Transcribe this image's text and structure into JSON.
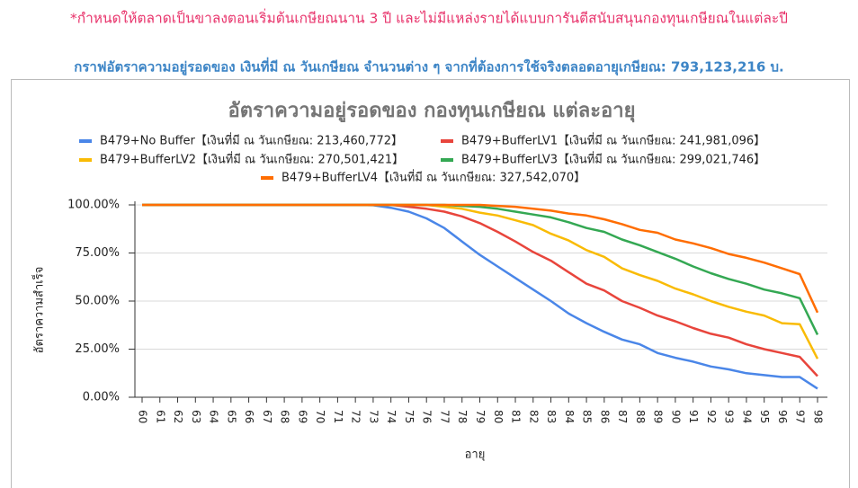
{
  "note": "*กำหนดให้ตลาดเป็นขาลงตอนเริ่มต้นเกษียณนาน 3 ปี และไม่มีแหล่งรายได้แบบการันตีสนับสนุนกองทุนเกษียณในแต่ละปี",
  "heading": "กราฟอัตราความอยู่รอดของ เงินที่มี ณ วันเกษียณ จำนวนต่าง ๆ จากที่ต้องการใช้จริงตลอดอายุเกษียณ: 793,123,216 บ.",
  "chart_data": {
    "type": "line",
    "title": "อัตราความอยู่รอดของ กองทุนเกษียณ แต่ละอายุ",
    "x_label": "อายุ",
    "y_label": "อัตราความสำเร็จ",
    "categories": [
      60,
      61,
      62,
      63,
      64,
      65,
      66,
      67,
      68,
      69,
      70,
      71,
      72,
      73,
      74,
      75,
      76,
      77,
      78,
      79,
      80,
      81,
      82,
      83,
      84,
      85,
      86,
      87,
      88,
      89,
      90,
      91,
      92,
      93,
      94,
      95,
      96,
      97,
      98
    ],
    "ylim": [
      0,
      100
    ],
    "yticks": [
      {
        "value": 0,
        "label": "0.00%"
      },
      {
        "value": 25,
        "label": "25.00%"
      },
      {
        "value": 50,
        "label": "50.00%"
      },
      {
        "value": 75,
        "label": "75.00%"
      },
      {
        "value": 100,
        "label": "100.00%"
      }
    ],
    "grid": true,
    "series": [
      {
        "name": "B479+No Buffer【เงินที่มี ณ วันเกษียณ: 213,460,772】",
        "color": "#4a86e8",
        "values": [
          100,
          100,
          100,
          100,
          100,
          100,
          100,
          100,
          100,
          100,
          100,
          100,
          100,
          99.8,
          98.5,
          96.5,
          93,
          88,
          81,
          74,
          68,
          62,
          56,
          50,
          43.5,
          38.5,
          34,
          30,
          27.5,
          23,
          20.5,
          18.5,
          16,
          14.5,
          12.5,
          11.5,
          10.5,
          10.5,
          4.5
        ]
      },
      {
        "name": "B479+BufferLV1【เงินที่มี ณ วันเกษียณ: 241,981,096】",
        "color": "#e8453c",
        "values": [
          100,
          100,
          100,
          100,
          100,
          100,
          100,
          100,
          100,
          100,
          100,
          100,
          100,
          100,
          100,
          99,
          98,
          96.5,
          94,
          90.5,
          86,
          81,
          75.5,
          71,
          65,
          59,
          55.5,
          50,
          46.5,
          42.5,
          39.5,
          36,
          33,
          31,
          27.5,
          25,
          23,
          21,
          11
        ]
      },
      {
        "name": "B479+BufferLV2【เงินที่มี ณ วันเกษียณ: 270,501,421】",
        "color": "#f9bb05",
        "values": [
          100,
          100,
          100,
          100,
          100,
          100,
          100,
          100,
          100,
          100,
          100,
          100,
          100,
          100,
          100,
          100,
          100,
          99,
          98,
          96,
          94.5,
          92,
          89.5,
          85,
          81.5,
          76.5,
          73,
          67,
          63.5,
          60.5,
          56.5,
          53.5,
          50,
          47,
          44.5,
          42.5,
          38.5,
          38,
          20
        ]
      },
      {
        "name": "B479+BufferLV3【เงินที่มี ณ วันเกษียณ: 299,021,746】",
        "color": "#34a853",
        "values": [
          100,
          100,
          100,
          100,
          100,
          100,
          100,
          100,
          100,
          100,
          100,
          100,
          100,
          100,
          100,
          100,
          100,
          100,
          99.5,
          99,
          98,
          96.5,
          95,
          93.5,
          91,
          88,
          86,
          82,
          79,
          75.5,
          72,
          68,
          64.5,
          61.5,
          59,
          56,
          54,
          51.5,
          32.5
        ]
      },
      {
        "name": "B479+BufferLV4【เงินที่มี ณ วันเกษียณ: 327,542,070】",
        "color": "#ff6d01",
        "values": [
          100,
          100,
          100,
          100,
          100,
          100,
          100,
          100,
          100,
          100,
          100,
          100,
          100,
          100,
          100,
          100,
          100,
          100,
          100,
          100,
          99.5,
          99,
          98,
          97,
          95.5,
          94.5,
          92.5,
          90,
          87,
          85.5,
          82,
          80,
          77.5,
          74.5,
          72.5,
          70,
          67,
          64,
          44
        ]
      }
    ]
  }
}
